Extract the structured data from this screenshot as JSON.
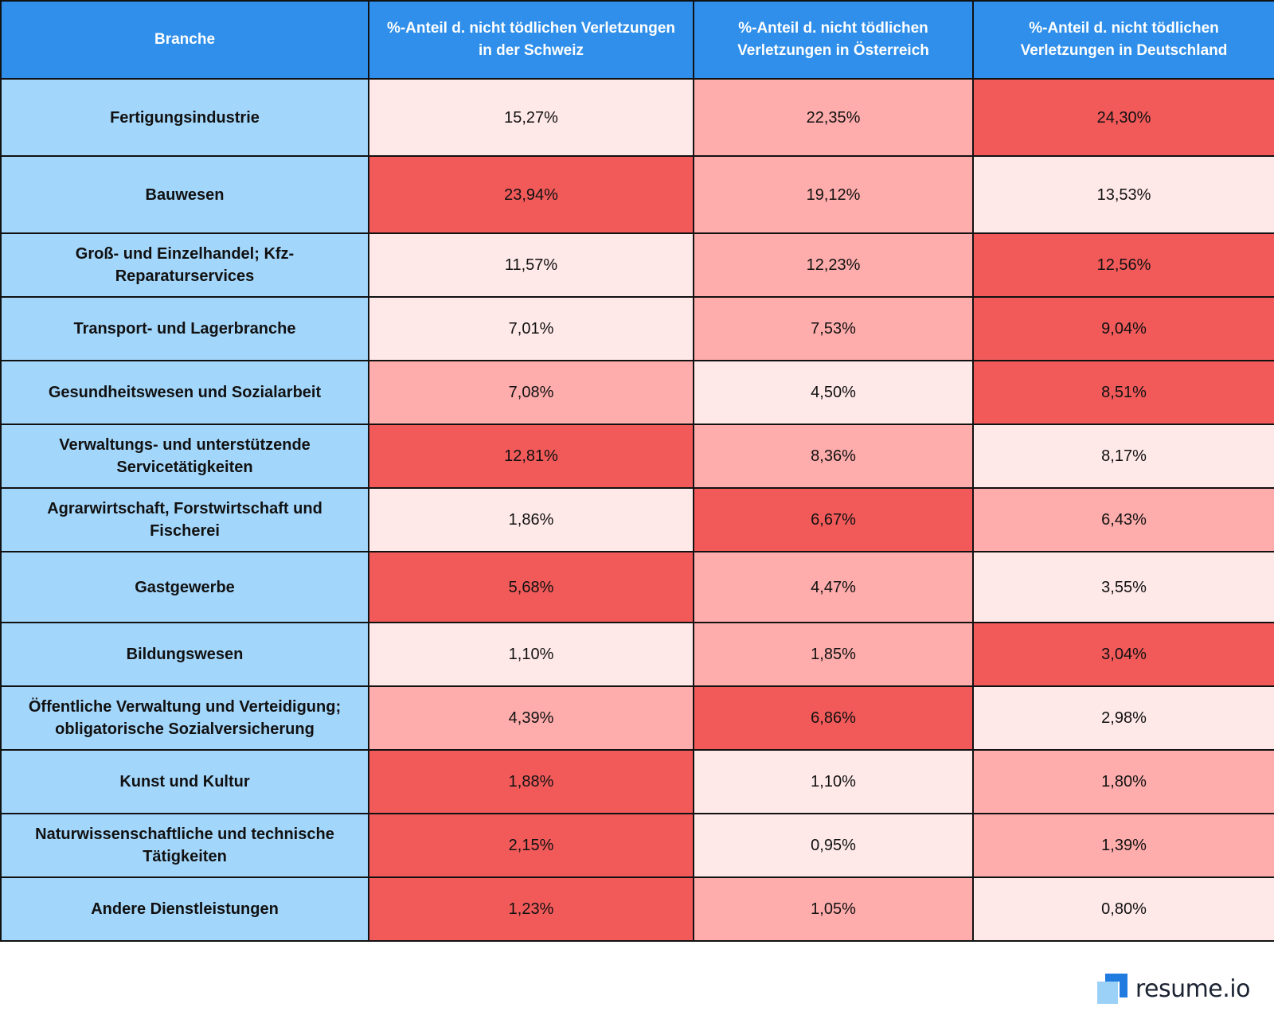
{
  "colors": {
    "header_bg": "#2f8fea",
    "branch_bg": "#a3d6fb",
    "high": "#f25a5a",
    "mid": "#ffadac",
    "low": "#ffe8e8",
    "border": "#111111",
    "logo_mark_dark": "#1f7be0",
    "logo_mark_light": "#9bd0f7"
  },
  "chart_data": {
    "type": "table",
    "columns": [
      "Branche",
      "%-Anteil d. nicht tödlichen Verletzungen in der Schweiz",
      "%-Anteil d. nicht tödlichen Verletzungen in Österreich",
      "%-Anteil d. nicht tödlichen Verletzungen in Deutschland"
    ],
    "rows": [
      {
        "branch": "Fertigungsindustrie",
        "values": [
          "15,27%",
          "22,35%",
          "24,30%"
        ],
        "levels": [
          "low",
          "mid",
          "high"
        ]
      },
      {
        "branch": "Bauwesen",
        "values": [
          "23,94%",
          "19,12%",
          "13,53%"
        ],
        "levels": [
          "high",
          "mid",
          "low"
        ]
      },
      {
        "branch": "Groß- und Einzelhandel; Kfz-Reparaturservices",
        "values": [
          "11,57%",
          "12,23%",
          "12,56%"
        ],
        "levels": [
          "low",
          "mid",
          "high"
        ]
      },
      {
        "branch": "Transport- und Lagerbranche",
        "values": [
          "7,01%",
          "7,53%",
          "9,04%"
        ],
        "levels": [
          "low",
          "mid",
          "high"
        ]
      },
      {
        "branch": "Gesundheitswesen und Sozialarbeit",
        "values": [
          "7,08%",
          "4,50%",
          "8,51%"
        ],
        "levels": [
          "mid",
          "low",
          "high"
        ]
      },
      {
        "branch": "Verwaltungs- und unterstützende Servicetätigkeiten",
        "values": [
          "12,81%",
          "8,36%",
          "8,17%"
        ],
        "levels": [
          "high",
          "mid",
          "low"
        ]
      },
      {
        "branch": "Agrarwirtschaft, Forstwirtschaft und Fischerei",
        "values": [
          "1,86%",
          "6,67%",
          "6,43%"
        ],
        "levels": [
          "low",
          "high",
          "mid"
        ]
      },
      {
        "branch": "Gastgewerbe",
        "values": [
          "5,68%",
          "4,47%",
          "3,55%"
        ],
        "levels": [
          "high",
          "mid",
          "low"
        ]
      },
      {
        "branch": "Bildungswesen",
        "values": [
          "1,10%",
          "1,85%",
          "3,04%"
        ],
        "levels": [
          "low",
          "mid",
          "high"
        ]
      },
      {
        "branch": "Öffentliche Verwaltung und Verteidigung; obligatorische Sozialversicherung",
        "values": [
          "4,39%",
          "6,86%",
          "2,98%"
        ],
        "levels": [
          "mid",
          "high",
          "low"
        ]
      },
      {
        "branch": "Kunst und Kultur",
        "values": [
          "1,88%",
          "1,10%",
          "1,80%"
        ],
        "levels": [
          "high",
          "low",
          "mid"
        ]
      },
      {
        "branch": "Naturwissenschaftliche und technische Tätigkeiten",
        "values": [
          "2,15%",
          "0,95%",
          "1,39%"
        ],
        "levels": [
          "high",
          "low",
          "mid"
        ]
      },
      {
        "branch": "Andere Dienstleistungen",
        "values": [
          "1,23%",
          "1,05%",
          "0,80%"
        ],
        "levels": [
          "high",
          "mid",
          "low"
        ]
      }
    ]
  },
  "logo": {
    "text": "resume.io",
    "icon": "resume-io-logo-icon"
  }
}
